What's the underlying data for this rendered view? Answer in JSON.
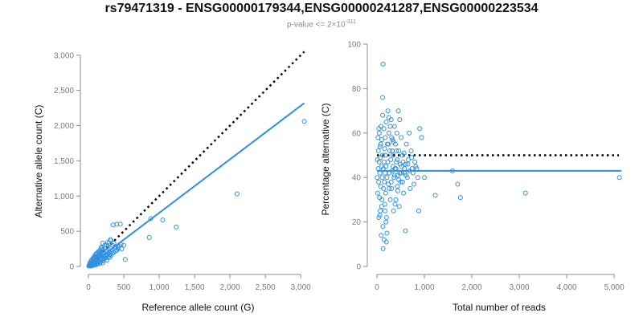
{
  "title": "rs79471319 - ENSG00000179344,ENSG00000241287,ENSG00000223534",
  "subtitle": {
    "text": "p-value <= 2×10",
    "exponent": "-311"
  },
  "colors": {
    "points": "#2f8fe0",
    "fit": "#2f8fe0",
    "reference": "#000000",
    "axis": "#8c8c8c"
  },
  "chart_data": [
    {
      "type": "scatter",
      "xlabel": "Reference allele count (G)",
      "ylabel": "Alternative allele count (C)",
      "xlim": [
        0,
        3100
      ],
      "ylim": [
        0,
        3100
      ],
      "xticks": [
        0,
        500,
        1000,
        1500,
        2000,
        2500,
        3000
      ],
      "yticks": [
        0,
        500,
        1000,
        1500,
        2000,
        2500,
        3000
      ],
      "xtick_labels": [
        "0",
        "500",
        "1,000",
        "1,500",
        "2,000",
        "2,500",
        "3,000"
      ],
      "ytick_labels": [
        "0",
        "500",
        "1,000",
        "1,500",
        "2,000",
        "2,500",
        "3,000"
      ],
      "reference_line": {
        "style": "dotted",
        "from": [
          0,
          0
        ],
        "to": [
          3050,
          3050
        ]
      },
      "fit_line": {
        "style": "solid",
        "from": [
          0,
          0
        ],
        "to": [
          3050,
          2320
        ]
      },
      "points": [
        [
          3050,
          2060
        ],
        [
          2100,
          1030
        ],
        [
          1240,
          560
        ],
        [
          1050,
          660
        ],
        [
          880,
          680
        ],
        [
          860,
          410
        ],
        [
          520,
          100
        ],
        [
          500,
          300
        ],
        [
          470,
          250
        ],
        [
          450,
          600
        ],
        [
          420,
          250
        ],
        [
          400,
          600
        ],
        [
          380,
          280
        ],
        [
          360,
          330
        ],
        [
          350,
          590
        ],
        [
          340,
          300
        ],
        [
          330,
          220
        ],
        [
          320,
          370
        ],
        [
          310,
          260
        ],
        [
          300,
          200
        ],
        [
          290,
          330
        ],
        [
          280,
          250
        ],
        [
          270,
          180
        ],
        [
          260,
          300
        ],
        [
          250,
          220
        ],
        [
          240,
          160
        ],
        [
          230,
          260
        ],
        [
          220,
          200
        ],
        [
          210,
          140
        ],
        [
          200,
          330
        ],
        [
          195,
          240
        ],
        [
          190,
          180
        ],
        [
          185,
          120
        ],
        [
          180,
          270
        ],
        [
          175,
          200
        ],
        [
          170,
          150
        ],
        [
          165,
          100
        ],
        [
          160,
          230
        ],
        [
          155,
          180
        ],
        [
          150,
          130
        ],
        [
          145,
          90
        ],
        [
          140,
          210
        ],
        [
          135,
          160
        ],
        [
          130,
          110
        ],
        [
          125,
          70
        ],
        [
          120,
          190
        ],
        [
          115,
          140
        ],
        [
          110,
          100
        ],
        [
          105,
          60
        ],
        [
          100,
          170
        ],
        [
          95,
          120
        ],
        [
          90,
          80
        ],
        [
          85,
          50
        ],
        [
          80,
          140
        ],
        [
          75,
          100
        ],
        [
          70,
          60
        ],
        [
          65,
          30
        ],
        [
          60,
          110
        ],
        [
          55,
          80
        ],
        [
          50,
          40
        ],
        [
          45,
          20
        ],
        [
          40,
          90
        ],
        [
          35,
          60
        ],
        [
          30,
          30
        ],
        [
          25,
          10
        ],
        [
          20,
          50
        ],
        [
          15,
          20
        ],
        [
          10,
          10
        ],
        [
          5,
          5
        ],
        [
          60,
          20
        ],
        [
          90,
          40
        ],
        [
          110,
          50
        ],
        [
          150,
          80
        ],
        [
          200,
          100
        ],
        [
          240,
          120
        ],
        [
          280,
          140
        ],
        [
          320,
          160
        ],
        [
          360,
          200
        ],
        [
          400,
          230
        ],
        [
          430,
          290
        ],
        [
          460,
          310
        ],
        [
          130,
          40
        ],
        [
          170,
          60
        ],
        [
          210,
          80
        ],
        [
          250,
          120
        ],
        [
          120,
          30
        ],
        [
          70,
          15
        ],
        [
          40,
          5
        ],
        [
          100,
          20
        ],
        [
          180,
          90
        ],
        [
          220,
          110
        ],
        [
          260,
          150
        ],
        [
          300,
          170
        ],
        [
          340,
          190
        ],
        [
          380,
          220
        ],
        [
          420,
          270
        ],
        [
          150,
          200
        ],
        [
          110,
          170
        ],
        [
          80,
          120
        ],
        [
          50,
          70
        ],
        [
          190,
          260
        ],
        [
          230,
          300
        ],
        [
          270,
          340
        ],
        [
          310,
          380
        ],
        [
          200,
          50
        ],
        [
          160,
          40
        ],
        [
          260,
          90
        ],
        [
          300,
          130
        ]
      ]
    },
    {
      "type": "scatter",
      "xlabel": "Total number of reads",
      "ylabel": "Percentage alternative (C)",
      "xlim": [
        0,
        5150
      ],
      "ylim": [
        0,
        100
      ],
      "xticks": [
        0,
        1000,
        2000,
        3000,
        4000,
        5000
      ],
      "yticks": [
        0,
        20,
        40,
        60,
        80,
        100
      ],
      "xtick_labels": [
        "0",
        "1,000",
        "2,000",
        "3,000",
        "4,000",
        "5,000"
      ],
      "ytick_labels": [
        "0",
        "20",
        "40",
        "60",
        "80",
        "100"
      ],
      "reference_line": {
        "style": "dotted",
        "from": [
          0,
          50
        ],
        "to": [
          5100,
          50
        ]
      },
      "fit_line": {
        "style": "solid",
        "from": [
          0,
          43
        ],
        "to": [
          5150,
          43
        ]
      },
      "points": [
        [
          5110,
          40
        ],
        [
          3130,
          33
        ],
        [
          1760,
          31
        ],
        [
          1700,
          37
        ],
        [
          1590,
          43
        ],
        [
          1230,
          32
        ],
        [
          1000,
          40
        ],
        [
          940,
          58
        ],
        [
          900,
          62
        ],
        [
          880,
          25
        ],
        [
          860,
          40
        ],
        [
          820,
          45
        ],
        [
          780,
          37
        ],
        [
          740,
          44
        ],
        [
          720,
          52
        ],
        [
          700,
          35
        ],
        [
          680,
          60
        ],
        [
          660,
          48
        ],
        [
          640,
          40
        ],
        [
          620,
          55
        ],
        [
          600,
          16
        ],
        [
          580,
          42
        ],
        [
          560,
          33
        ],
        [
          540,
          50
        ],
        [
          520,
          45
        ],
        [
          500,
          38
        ],
        [
          480,
          66
        ],
        [
          470,
          27
        ],
        [
          460,
          52
        ],
        [
          450,
          70
        ],
        [
          440,
          41
        ],
        [
          430,
          36
        ],
        [
          420,
          60
        ],
        [
          410,
          47
        ],
        [
          400,
          30
        ],
        [
          390,
          55
        ],
        [
          380,
          44
        ],
        [
          370,
          63
        ],
        [
          360,
          40
        ],
        [
          350,
          25
        ],
        [
          340,
          50
        ],
        [
          330,
          57
        ],
        [
          320,
          43
        ],
        [
          310,
          35
        ],
        [
          300,
          66
        ],
        [
          290,
          48
        ],
        [
          280,
          30
        ],
        [
          270,
          52
        ],
        [
          260,
          42
        ],
        [
          250,
          60
        ],
        [
          240,
          37
        ],
        [
          230,
          47
        ],
        [
          220,
          55
        ],
        [
          210,
          40
        ],
        [
          200,
          22
        ],
        [
          195,
          65
        ],
        [
          190,
          45
        ],
        [
          185,
          33
        ],
        [
          180,
          50
        ],
        [
          175,
          58
        ],
        [
          170,
          42
        ],
        [
          165,
          28
        ],
        [
          160,
          53
        ],
        [
          155,
          38
        ],
        [
          150,
          47
        ],
        [
          145,
          62
        ],
        [
          140,
          35
        ],
        [
          135,
          44
        ],
        [
          130,
          91
        ],
        [
          125,
          18
        ],
        [
          120,
          76
        ],
        [
          115,
          50
        ],
        [
          110,
          40
        ],
        [
          105,
          30
        ],
        [
          100,
          57
        ],
        [
          95,
          45
        ],
        [
          90,
          14
        ],
        [
          85,
          63
        ],
        [
          80,
          36
        ],
        [
          75,
          49
        ],
        [
          70,
          25
        ],
        [
          65,
          54
        ],
        [
          60,
          42
        ],
        [
          55,
          31
        ],
        [
          50,
          60
        ],
        [
          45,
          47
        ],
        [
          40,
          22
        ],
        [
          35,
          38
        ],
        [
          30,
          52
        ],
        [
          25,
          44
        ],
        [
          20,
          58
        ],
        [
          15,
          33
        ],
        [
          10,
          48
        ],
        [
          5,
          40
        ],
        [
          130,
          8
        ],
        [
          150,
          12
        ],
        [
          170,
          25
        ],
        [
          190,
          20
        ],
        [
          210,
          15
        ],
        [
          230,
          70
        ],
        [
          250,
          67
        ],
        [
          280,
          63
        ],
        [
          310,
          58
        ],
        [
          340,
          45
        ],
        [
          370,
          41
        ],
        [
          400,
          44
        ],
        [
          430,
          48
        ],
        [
          460,
          39
        ],
        [
          490,
          46
        ],
        [
          520,
          42
        ],
        [
          550,
          47
        ],
        [
          580,
          44
        ],
        [
          610,
          41
        ],
        [
          650,
          46
        ],
        [
          690,
          43
        ],
        [
          730,
          49
        ],
        [
          760,
          42
        ],
        [
          800,
          47
        ],
        [
          840,
          44
        ],
        [
          120,
          68
        ],
        [
          100,
          27
        ],
        [
          80,
          55
        ],
        [
          60,
          23
        ],
        [
          40,
          62
        ],
        [
          200,
          11
        ],
        [
          240,
          55
        ],
        [
          260,
          35
        ],
        [
          300,
          38
        ],
        [
          320,
          52
        ],
        [
          350,
          56
        ],
        [
          380,
          28
        ],
        [
          410,
          52
        ],
        [
          440,
          34
        ],
        [
          480,
          42
        ],
        [
          510,
          58
        ],
        [
          540,
          38
        ],
        [
          570,
          51
        ],
        [
          600,
          46
        ]
      ]
    }
  ]
}
